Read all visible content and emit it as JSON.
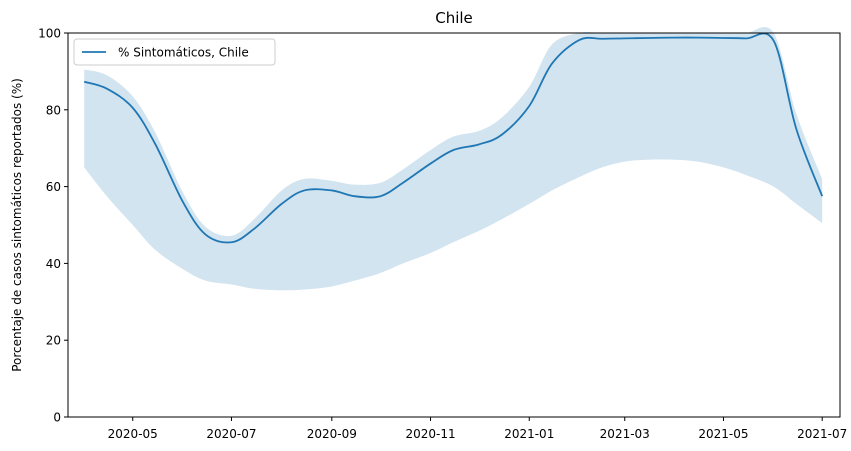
{
  "chart_data": {
    "type": "line",
    "title": "Chile",
    "xlabel": "",
    "ylabel": "Porcentaje de casos sintomáticos reportados (%)",
    "ylim": [
      0,
      100
    ],
    "xlim": [
      "2020-03-22",
      "2021-07-12"
    ],
    "yticks": [
      0,
      20,
      40,
      60,
      80,
      100
    ],
    "xticks": [
      "2020-05-01",
      "2020-07-01",
      "2020-09-01",
      "2020-11-01",
      "2021-01-01",
      "2021-03-01",
      "2021-05-01",
      "2021-07-01"
    ],
    "xtick_labels": [
      "2020-05",
      "2020-07",
      "2020-09",
      "2020-11",
      "2021-01",
      "2021-03",
      "2021-05",
      "2021-07"
    ],
    "grid": false,
    "legend_position": "upper-left",
    "colors": {
      "line": "#1f77b4",
      "band": "#1f77b4",
      "axes": "#000000"
    },
    "series": [
      {
        "name": "% Sintomáticos, Chile",
        "x": [
          "2020-04-01",
          "2020-04-15",
          "2020-05-01",
          "2020-05-15",
          "2020-06-01",
          "2020-06-15",
          "2020-07-01",
          "2020-07-15",
          "2020-08-01",
          "2020-08-15",
          "2020-09-01",
          "2020-09-15",
          "2020-10-01",
          "2020-10-15",
          "2020-11-01",
          "2020-11-15",
          "2020-12-01",
          "2020-12-15",
          "2021-01-01",
          "2021-01-15",
          "2021-02-01",
          "2021-02-15",
          "2021-03-01",
          "2021-03-15",
          "2021-04-01",
          "2021-04-15",
          "2021-05-01",
          "2021-05-15",
          "2021-06-01",
          "2021-06-15",
          "2021-07-01"
        ],
        "y": [
          87.3,
          85.5,
          80.5,
          71.0,
          56.0,
          47.5,
          45.5,
          49.0,
          55.5,
          59.0,
          59.0,
          57.5,
          57.5,
          61.0,
          66.0,
          69.5,
          71.0,
          73.5,
          81.0,
          92.0,
          98.2,
          98.5,
          98.6,
          98.7,
          98.8,
          98.8,
          98.7,
          98.6,
          98.0,
          75.0,
          57.5
        ],
        "lower": [
          65.0,
          57.5,
          50.0,
          43.5,
          38.5,
          35.5,
          34.5,
          33.4,
          33.0,
          33.2,
          34.0,
          35.5,
          37.5,
          40.0,
          42.7,
          45.5,
          48.5,
          51.5,
          55.5,
          59.0,
          62.5,
          65.0,
          66.5,
          67.0,
          67.0,
          66.5,
          65.0,
          63.0,
          60.0,
          55.5,
          50.5
        ],
        "upper": [
          90.5,
          89.0,
          83.5,
          74.0,
          58.5,
          49.5,
          47.2,
          51.5,
          59.0,
          62.0,
          61.5,
          60.5,
          61.0,
          64.5,
          69.5,
          73.0,
          74.5,
          78.0,
          86.0,
          97.0,
          100.0,
          100.0,
          100.0,
          100.0,
          100.0,
          100.0,
          100.0,
          100.0,
          100.0,
          79.0,
          62.0
        ]
      }
    ]
  }
}
